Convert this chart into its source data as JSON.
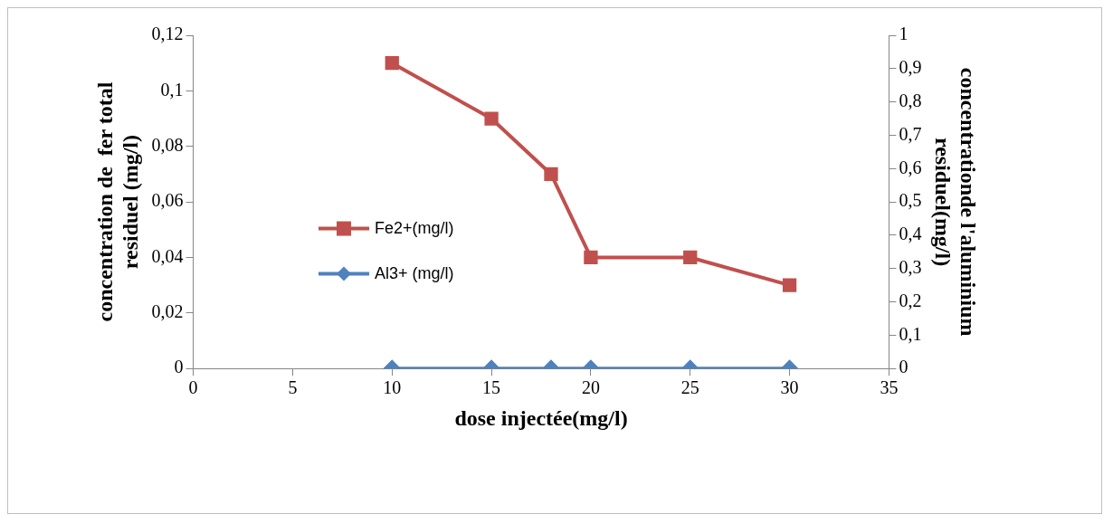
{
  "chart_data": {
    "type": "line",
    "xlabel": "dose injectée(mg/l)",
    "ylabel": "concentration de  fer total\nresiduel (mg/l)",
    "y2label": "concentrationde l'aluminium\nresiduel(mg/l)",
    "x": [
      10,
      15,
      18,
      20,
      25,
      30
    ],
    "series": [
      {
        "name": "Fe2+(mg/l)",
        "color": "#c0504d",
        "marker": "square",
        "values": [
          0.11,
          0.09,
          0.07,
          0.04,
          0.04,
          0.03
        ]
      },
      {
        "name": "Al3+ (mg/l)",
        "color": "#4f81bd",
        "marker": "diamond",
        "axis": "y2",
        "values": [
          0,
          0,
          0,
          0,
          0,
          0
        ]
      }
    ],
    "xlim": [
      0,
      35
    ],
    "xticks": [
      0,
      5,
      10,
      15,
      20,
      25,
      30,
      35
    ],
    "ylim": [
      0,
      0.12
    ],
    "yticks": [
      0,
      {
        "value": 0.02,
        "label": "0,02"
      },
      {
        "value": 0.04,
        "label": "0,04"
      },
      {
        "value": 0.06,
        "label": "0,06"
      },
      {
        "value": 0.08,
        "label": "0,08"
      },
      {
        "value": 0.1,
        "label": "0,1"
      },
      {
        "value": 0.12,
        "label": "0,12"
      }
    ],
    "y2lim": [
      0,
      1
    ],
    "y2ticks": [
      0,
      {
        "value": 0.1,
        "label": "0,1"
      },
      {
        "value": 0.2,
        "label": "0,2"
      },
      {
        "value": 0.3,
        "label": "0,3"
      },
      {
        "value": 0.4,
        "label": "0,4"
      },
      {
        "value": 0.5,
        "label": "0,5"
      },
      {
        "value": 0.6,
        "label": "0,6"
      },
      {
        "value": 0.7,
        "label": "0,7"
      },
      {
        "value": 0.8,
        "label": "0,8"
      },
      {
        "value": 0.9,
        "label": "0,9"
      },
      1
    ],
    "grid": false,
    "legend": "left"
  }
}
